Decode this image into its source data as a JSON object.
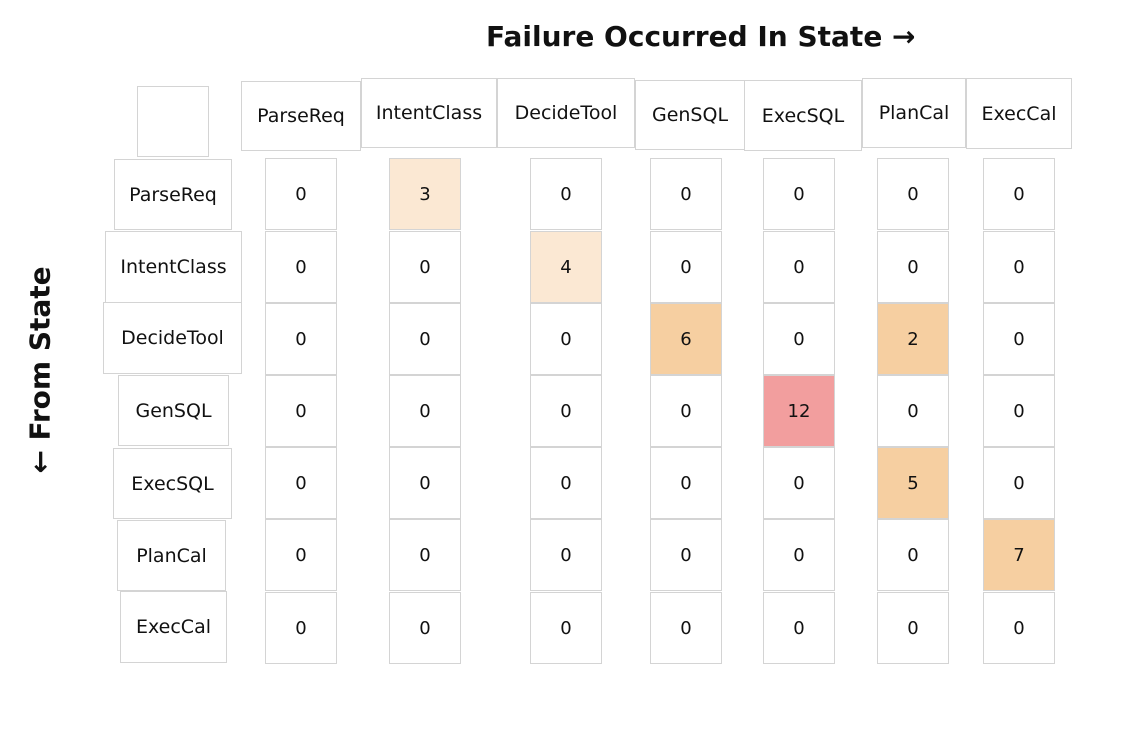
{
  "chart_data": {
    "type": "heatmap",
    "xlabel": "Failure Occurred In State →",
    "ylabel": "← From State",
    "columns": [
      "ParseReq",
      "IntentClass",
      "DecideTool",
      "GenSQL",
      "ExecSQL",
      "PlanCal",
      "ExecCal"
    ],
    "rows": [
      "ParseReq",
      "IntentClass",
      "DecideTool",
      "GenSQL",
      "ExecSQL",
      "PlanCal",
      "ExecCal"
    ],
    "values": [
      [
        0,
        3,
        0,
        0,
        0,
        0,
        0
      ],
      [
        0,
        0,
        4,
        0,
        0,
        0,
        0
      ],
      [
        0,
        0,
        0,
        6,
        0,
        2,
        0
      ],
      [
        0,
        0,
        0,
        0,
        12,
        0,
        0
      ],
      [
        0,
        0,
        0,
        0,
        0,
        5,
        0
      ],
      [
        0,
        0,
        0,
        0,
        0,
        0,
        7
      ],
      [
        0,
        0,
        0,
        0,
        0,
        0,
        0
      ]
    ],
    "colors": {
      "zero": "#ffffff",
      "low": "#fbe8d3",
      "mid": "#f6cfa1",
      "high": "#f29e9e",
      "border": "#d4d4d4"
    }
  }
}
